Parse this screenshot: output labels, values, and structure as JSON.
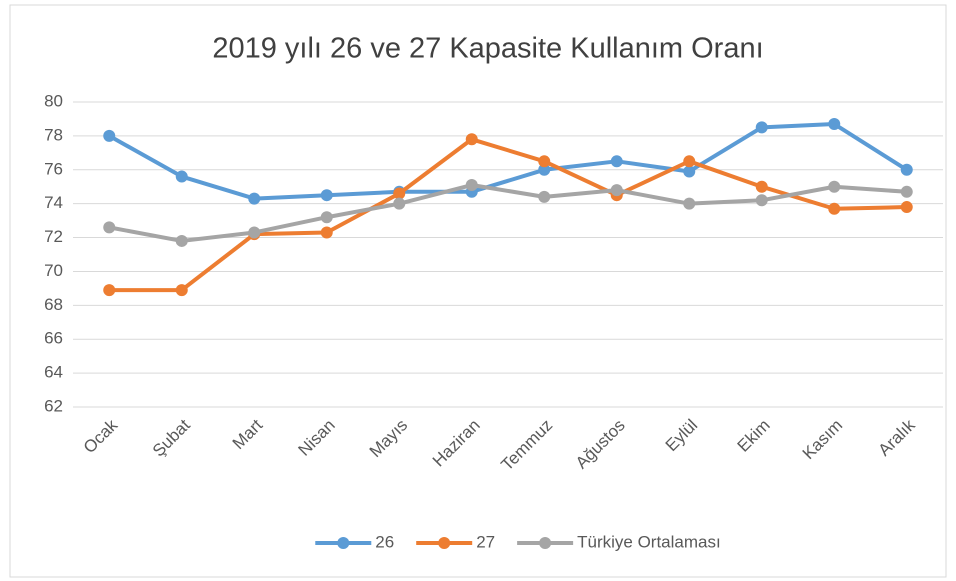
{
  "chart_data": {
    "type": "line",
    "title": "2019 yılı 26 ve 27 Kapasite Kullanım Oranı",
    "categories": [
      "Ocak",
      "Şubat",
      "Mart",
      "Nisan",
      "Mayıs",
      "Haziran",
      "Temmuz",
      "Ağustos",
      "Eylül",
      "Ekim",
      "Kasım",
      "Aralık"
    ],
    "series": [
      {
        "name": "26",
        "color": "#5b9bd5",
        "values": [
          78.0,
          75.6,
          74.3,
          74.5,
          74.7,
          74.7,
          76.0,
          76.5,
          75.9,
          78.5,
          78.7,
          76.0
        ]
      },
      {
        "name": "27",
        "color": "#ed7d31",
        "values": [
          68.9,
          68.9,
          72.2,
          72.3,
          74.6,
          77.8,
          76.5,
          74.5,
          76.5,
          75.0,
          73.7,
          73.8
        ]
      },
      {
        "name": "Türkiye Ortalaması",
        "color": "#a5a5a5",
        "values": [
          72.6,
          71.8,
          72.3,
          73.2,
          74.0,
          75.1,
          74.4,
          74.8,
          74.0,
          74.2,
          75.0,
          74.7
        ]
      }
    ],
    "ylim": [
      62,
      80
    ],
    "yticks": [
      62,
      64,
      66,
      68,
      70,
      72,
      74,
      76,
      78,
      80
    ],
    "grid": true,
    "legend": "bottom"
  }
}
